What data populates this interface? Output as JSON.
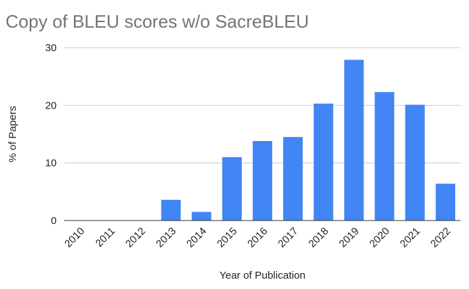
{
  "chart_data": {
    "type": "bar",
    "title": "Copy of BLEU scores w/o SacreBLEU",
    "xlabel": "Year of Publication",
    "ylabel": "% of Papers",
    "categories": [
      "2010",
      "2011",
      "2012",
      "2013",
      "2014",
      "2015",
      "2016",
      "2017",
      "2018",
      "2019",
      "2020",
      "2021",
      "2022"
    ],
    "values": [
      0,
      0,
      0,
      3.6,
      1.5,
      11.0,
      13.8,
      14.5,
      20.3,
      27.9,
      22.3,
      20.1,
      6.4
    ],
    "ylim": [
      0,
      30
    ],
    "yticks": [
      0,
      10,
      20,
      30
    ],
    "grid": true,
    "legend": "none",
    "bar_color": "#4285f4"
  }
}
